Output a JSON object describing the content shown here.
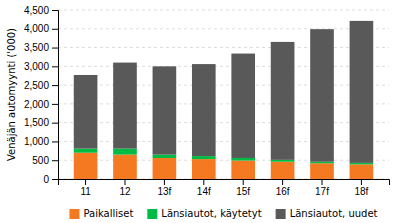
{
  "chart_data": {
    "type": "bar",
    "stacked": true,
    "categories": [
      "11",
      "12",
      "13f",
      "14f",
      "15f",
      "16f",
      "17f",
      "18f"
    ],
    "series": [
      {
        "name": "Paikalliset",
        "color": "#f47920",
        "values": [
          700,
          650,
          560,
          530,
          490,
          460,
          420,
          390
        ]
      },
      {
        "name": "Länsiautot, käytetyt",
        "color": "#00bb44",
        "values": [
          110,
          160,
          90,
          80,
          70,
          50,
          40,
          40
        ]
      },
      {
        "name": "Länsiautot, uudet",
        "color": "#595959",
        "values": [
          1960,
          2290,
          2350,
          2450,
          2780,
          3140,
          3530,
          3780
        ]
      }
    ],
    "ylabel": "Venäjän automyynti ('000)",
    "ylim": [
      0,
      4500
    ],
    "yticks": [
      0,
      500,
      {
        "value": 1000,
        "label": "1,000"
      },
      {
        "value": 1500,
        "label": "1,500"
      },
      {
        "value": 2000,
        "label": "2,000"
      },
      {
        "value": 2500,
        "label": "2,500"
      },
      {
        "value": 3000,
        "label": "3,000"
      },
      {
        "value": 3500,
        "label": "3,500"
      },
      {
        "value": 4000,
        "label": "4,000"
      },
      {
        "value": 4500,
        "label": "4,500"
      }
    ],
    "grid": true,
    "legend": "bottom"
  }
}
